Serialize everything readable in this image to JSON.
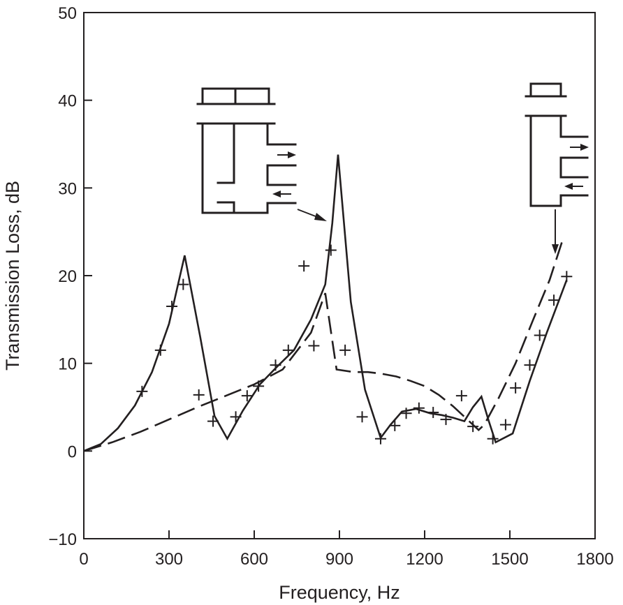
{
  "chart_data": {
    "type": "line",
    "title": "",
    "xlabel": "Frequency, Hz",
    "ylabel": "Transmission Loss, dB",
    "xlim": [
      0,
      1800
    ],
    "ylim": [
      -10,
      50
    ],
    "x_ticks": [
      0,
      300,
      600,
      900,
      1200,
      1500,
      1800
    ],
    "y_ticks": [
      -10,
      0,
      10,
      20,
      30,
      40,
      50
    ],
    "x_tick_labels": [
      "0",
      "300",
      "600",
      "900",
      "1200",
      "1500",
      "1800"
    ],
    "y_tick_labels": [
      "−10",
      "0",
      "10",
      "20",
      "30",
      "40",
      "50"
    ],
    "grid": false,
    "legend": "none",
    "series": [
      {
        "style": "solid",
        "x": [
          0,
          60,
          120,
          180,
          240,
          300,
          355,
          410,
          460,
          505,
          560,
          620,
          680,
          740,
          800,
          850,
          875,
          895,
          940,
          990,
          1045,
          1080,
          1120,
          1170,
          1220,
          1260,
          1300,
          1340,
          1370,
          1400,
          1425,
          1450,
          1510,
          1570,
          1630,
          1700
        ],
        "y": [
          0,
          0.8,
          2.6,
          5.2,
          9,
          14.5,
          22.3,
          13,
          4,
          1.4,
          4.6,
          7.6,
          9.6,
          11.5,
          15,
          19,
          26,
          33.8,
          17,
          7,
          1.5,
          3,
          4.5,
          4.8,
          4.3,
          4.1,
          3.8,
          3.4,
          5,
          6.2,
          3.5,
          1,
          2,
          8,
          13.5,
          19.5
        ]
      },
      {
        "style": "dashed",
        "x": [
          0,
          100,
          200,
          300,
          400,
          500,
          600,
          700,
          800,
          850,
          890,
          950,
          1000,
          1050,
          1100,
          1150,
          1200,
          1250,
          1300,
          1350,
          1390,
          1410,
          1460,
          1520,
          1580,
          1640,
          1690
        ],
        "y": [
          0,
          1,
          2.2,
          3.6,
          5,
          6.3,
          7.6,
          9.3,
          13.5,
          18,
          9.3,
          9,
          9,
          8.8,
          8.5,
          8,
          7.4,
          6.4,
          5.1,
          3.6,
          2.4,
          3,
          6,
          10,
          14.8,
          19.5,
          24.5
        ]
      },
      {
        "style": "markers",
        "marker": "+",
        "x": [
          205,
          270,
          310,
          350,
          405,
          455,
          535,
          575,
          615,
          675,
          720,
          775,
          810,
          870,
          920,
          980,
          1045,
          1095,
          1135,
          1180,
          1230,
          1275,
          1330,
          1370,
          1440,
          1485,
          1520,
          1570,
          1605,
          1655,
          1700
        ],
        "y": [
          6.8,
          11.5,
          16.5,
          19,
          6.4,
          3.4,
          3.9,
          6.3,
          7.4,
          9.8,
          11.5,
          21.1,
          12,
          22.9,
          11.5,
          3.9,
          1.4,
          2.9,
          4.3,
          4.9,
          4.4,
          3.6,
          6.3,
          2.8,
          1.4,
          3,
          7.2,
          9.8,
          13.2,
          17.2,
          19.9
        ]
      }
    ]
  }
}
